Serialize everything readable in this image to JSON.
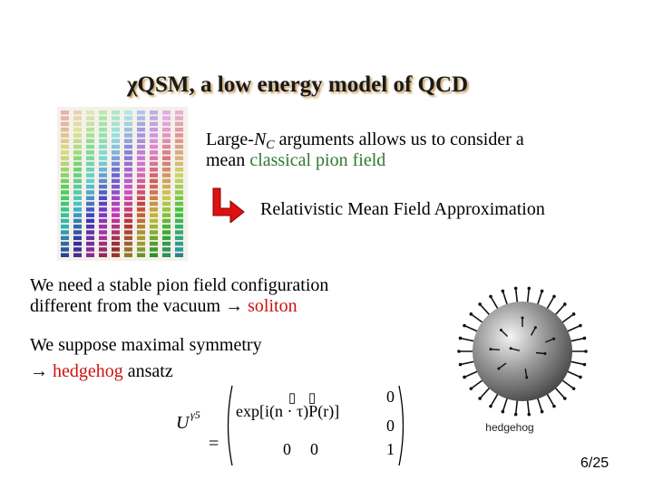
{
  "title": "χQSM, a low energy model of QCD",
  "block1": {
    "line1_a": "Large-",
    "line1_n": "N",
    "line1_sub": "C",
    "line1_b": " arguments allows us to consider a",
    "line2_a": "mean ",
    "line2_green": "classical pion field"
  },
  "rmfa": "Relativistic Mean Field Approximation",
  "block2": {
    "line1": "We need a stable pion field configuration",
    "line2_a": "different from the vacuum → ",
    "line2_red": "soliton"
  },
  "block3": {
    "line1": "We suppose maximal symmetry",
    "line2_a": "→ ",
    "line2_red": "hedgehog",
    "line2_b": " ansatz"
  },
  "formula": {
    "lhs": "U",
    "lhs_sup": "γ5",
    "equals": "=",
    "row1_main": "exp[i(n · τ)P(r)]",
    "row1_right": "0",
    "row2_right": "0",
    "row3_left": "0",
    "row3_mid": "0",
    "row3_right": "1",
    "box_glyph": "▯"
  },
  "hedgehog_label": "hedgehog",
  "page_number": "6/25",
  "colors": {
    "green": "#2e7a2e",
    "red": "#cc1111",
    "arrow_red": "#dd1111"
  }
}
